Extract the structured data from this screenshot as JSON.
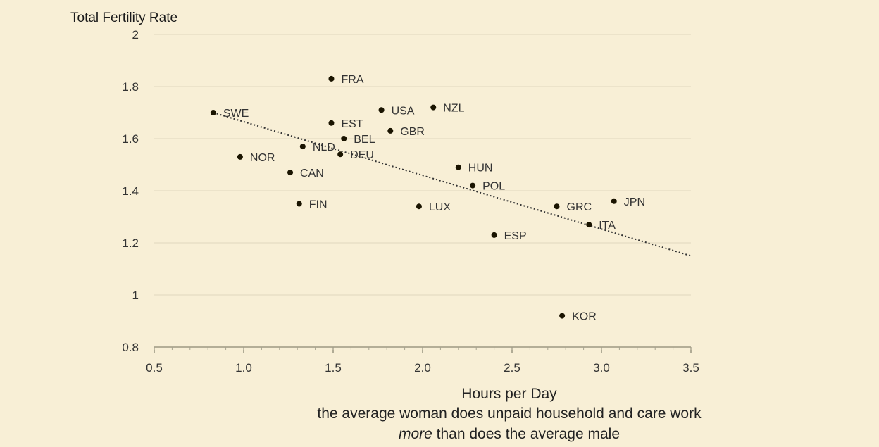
{
  "chart_data": {
    "type": "scatter",
    "ylabel": "Total Fertility Rate",
    "xlabel": "Hours per Day",
    "subtitle_line1": "the average woman does unpaid household and care work",
    "subtitle_line2_em": "more",
    "subtitle_line2_rest": " than does the average male",
    "xlim": [
      0.5,
      3.5
    ],
    "ylim": [
      0.8,
      2.0
    ],
    "xticks": [
      "0.5",
      "1.0",
      "1.5",
      "2.0",
      "2.5",
      "3.0",
      "3.5"
    ],
    "yticks": [
      "0.8",
      "1",
      "1.2",
      "1.4",
      "1.6",
      "1.8",
      "2"
    ],
    "grid": "horizontal",
    "colors": {
      "point": "#1a1400",
      "trendline": "#333333",
      "grid": "#e4dcc4"
    },
    "trendline": {
      "x": [
        0.83,
        3.5
      ],
      "y": [
        1.7,
        1.15
      ]
    },
    "points": [
      {
        "label": "SWE",
        "x": 0.83,
        "y": 1.7
      },
      {
        "label": "NOR",
        "x": 0.98,
        "y": 1.53
      },
      {
        "label": "CAN",
        "x": 1.26,
        "y": 1.47
      },
      {
        "label": "FIN",
        "x": 1.31,
        "y": 1.35
      },
      {
        "label": "NLD",
        "x": 1.33,
        "y": 1.57
      },
      {
        "label": "FRA",
        "x": 1.49,
        "y": 1.83
      },
      {
        "label": "EST",
        "x": 1.49,
        "y": 1.66
      },
      {
        "label": "BEL",
        "x": 1.56,
        "y": 1.6
      },
      {
        "label": "DEU",
        "x": 1.54,
        "y": 1.54
      },
      {
        "label": "USA",
        "x": 1.77,
        "y": 1.71
      },
      {
        "label": "GBR",
        "x": 1.82,
        "y": 1.63
      },
      {
        "label": "LUX",
        "x": 1.98,
        "y": 1.34
      },
      {
        "label": "NZL",
        "x": 2.06,
        "y": 1.72
      },
      {
        "label": "HUN",
        "x": 2.2,
        "y": 1.49
      },
      {
        "label": "POL",
        "x": 2.28,
        "y": 1.42
      },
      {
        "label": "ESP",
        "x": 2.4,
        "y": 1.23
      },
      {
        "label": "GRC",
        "x": 2.75,
        "y": 1.34
      },
      {
        "label": "KOR",
        "x": 2.78,
        "y": 0.92
      },
      {
        "label": "ITA",
        "x": 2.93,
        "y": 1.27
      },
      {
        "label": "JPN",
        "x": 3.07,
        "y": 1.36
      }
    ]
  }
}
